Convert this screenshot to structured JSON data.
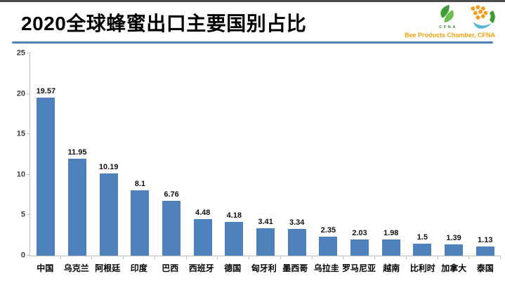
{
  "header": {
    "title": "2020全球蜂蜜出口主要国别占比",
    "logo_caption": "Bee Products Chamber, CFNA",
    "logo_left_letters": "CFNA"
  },
  "colors": {
    "bar": "#4f81bd",
    "header_rule": "#4f81bd",
    "logo_caption": "#f0a30a",
    "axis_line": "#bfbfbf",
    "top_strip": "#4d4d4d",
    "logo_green": "#3f9c35",
    "logo_orange": "#f59b1e",
    "logo_blue": "#56b6d9"
  },
  "chart_data": {
    "type": "bar",
    "title": "2020全球蜂蜜出口主要国别占比",
    "categories": [
      "中国",
      "乌克兰",
      "阿根廷",
      "印度",
      "巴西",
      "西班牙",
      "德国",
      "匈牙利",
      "墨西哥",
      "乌拉圭",
      "罗马尼亚",
      "越南",
      "比利时",
      "加拿大",
      "泰国"
    ],
    "values": [
      19.57,
      11.95,
      10.19,
      8.1,
      6.76,
      4.48,
      4.18,
      3.41,
      3.34,
      2.35,
      2.03,
      1.98,
      1.5,
      1.39,
      1.13
    ],
    "value_labels": [
      "19.57",
      "11.95",
      "10.19",
      "8.1",
      "6.76",
      "4.48",
      "4.18",
      "3.41",
      "3.34",
      "2.35",
      "2.03",
      "1.98",
      "1.5",
      "1.39",
      "1.13"
    ],
    "xlabel": "",
    "ylabel": "",
    "ylim": [
      0,
      25
    ],
    "yticks": [
      0,
      5,
      10,
      15,
      20,
      25
    ],
    "grid": false,
    "legend_position": "none",
    "bar_color": "#4f81bd"
  }
}
